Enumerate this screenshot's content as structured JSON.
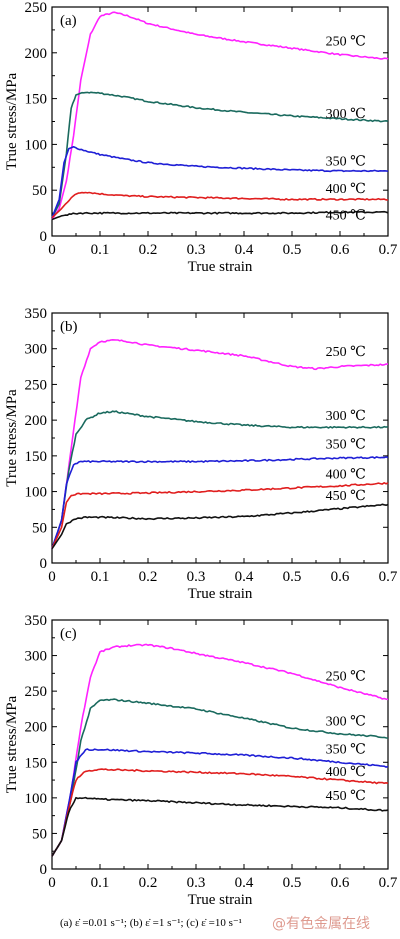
{
  "caption": "(a)  ε̇ =0.01 s⁻¹; (b)  ε̇ =1 s⁻¹; (c) ε̇ =10 s⁻¹",
  "watermark": "@有色金属在线",
  "colors": {
    "250": "#ff22ff",
    "300": "#1a6a5e",
    "350": "#1f1fd6",
    "400": "#e01e1e",
    "450": "#111111"
  },
  "chart_data": [
    {
      "type": "line",
      "panel_label": "(a)",
      "xlabel": "True strain",
      "ylabel": "True stress/MPa",
      "xlim": [
        0,
        0.7
      ],
      "ylim": [
        0,
        250
      ],
      "xticks": [
        "0",
        "0.1",
        "0.2",
        "0.3",
        "0.4",
        "0.5",
        "0.6",
        "0.7"
      ],
      "yticks": [
        "0",
        "50",
        "100",
        "150",
        "200",
        "250"
      ],
      "series": [
        {
          "name": "250 ℃",
          "temp": "250",
          "x": [
            0,
            0.015,
            0.03,
            0.045,
            0.06,
            0.08,
            0.1,
            0.13,
            0.16,
            0.2,
            0.3,
            0.4,
            0.5,
            0.6,
            0.7
          ],
          "y": [
            18,
            30,
            60,
            110,
            170,
            220,
            240,
            244,
            240,
            232,
            220,
            212,
            205,
            198,
            193
          ]
        },
        {
          "name": "300 ℃",
          "temp": "300",
          "x": [
            0,
            0.015,
            0.03,
            0.04,
            0.05,
            0.07,
            0.1,
            0.15,
            0.2,
            0.3,
            0.4,
            0.5,
            0.6,
            0.7
          ],
          "y": [
            20,
            35,
            90,
            140,
            154,
            157,
            156,
            152,
            147,
            140,
            135,
            131,
            128,
            125
          ]
        },
        {
          "name": "350 ℃",
          "temp": "350",
          "x": [
            0,
            0.015,
            0.025,
            0.035,
            0.045,
            0.07,
            0.1,
            0.15,
            0.2,
            0.3,
            0.4,
            0.5,
            0.6,
            0.7
          ],
          "y": [
            20,
            40,
            80,
            95,
            97,
            93,
            89,
            84,
            80,
            76,
            74,
            72,
            71,
            71
          ]
        },
        {
          "name": "400 ℃",
          "temp": "400",
          "x": [
            0,
            0.02,
            0.04,
            0.055,
            0.07,
            0.1,
            0.15,
            0.2,
            0.3,
            0.4,
            0.5,
            0.6,
            0.7
          ],
          "y": [
            20,
            30,
            42,
            47,
            48,
            46,
            44,
            43,
            42,
            41,
            40,
            40,
            40
          ]
        },
        {
          "name": "450 ℃",
          "temp": "450",
          "x": [
            0,
            0.02,
            0.04,
            0.06,
            0.1,
            0.2,
            0.3,
            0.4,
            0.5,
            0.6,
            0.7
          ],
          "y": [
            18,
            22,
            24,
            25,
            25,
            25,
            25,
            25,
            25,
            26,
            26
          ]
        }
      ]
    },
    {
      "type": "line",
      "panel_label": "(b)",
      "xlabel": "True strain",
      "ylabel": "True stress/MPa",
      "xlim": [
        0,
        0.7
      ],
      "ylim": [
        0,
        350
      ],
      "xticks": [
        "0",
        "0.1",
        "0.2",
        "0.3",
        "0.4",
        "0.5",
        "0.6",
        "0.7"
      ],
      "yticks": [
        "0",
        "50",
        "100",
        "150",
        "200",
        "250",
        "300",
        "350"
      ],
      "series": [
        {
          "name": "250 ℃",
          "temp": "250",
          "x": [
            0,
            0.02,
            0.04,
            0.06,
            0.08,
            0.1,
            0.13,
            0.16,
            0.2,
            0.3,
            0.4,
            0.5,
            0.55,
            0.6,
            0.7
          ],
          "y": [
            20,
            60,
            160,
            260,
            300,
            310,
            312,
            310,
            305,
            298,
            290,
            275,
            272,
            275,
            278
          ]
        },
        {
          "name": "300 ℃",
          "temp": "300",
          "x": [
            0,
            0.02,
            0.035,
            0.05,
            0.07,
            0.1,
            0.13,
            0.2,
            0.3,
            0.4,
            0.5,
            0.6,
            0.7
          ],
          "y": [
            20,
            60,
            130,
            180,
            200,
            210,
            212,
            205,
            198,
            193,
            190,
            190,
            190
          ]
        },
        {
          "name": "350 ℃",
          "temp": "350",
          "x": [
            0,
            0.02,
            0.03,
            0.045,
            0.06,
            0.1,
            0.2,
            0.3,
            0.4,
            0.5,
            0.6,
            0.7
          ],
          "y": [
            20,
            60,
            110,
            138,
            142,
            142,
            142,
            142,
            143,
            145,
            147,
            148
          ]
        },
        {
          "name": "400 ℃",
          "temp": "400",
          "x": [
            0,
            0.02,
            0.03,
            0.04,
            0.06,
            0.1,
            0.2,
            0.3,
            0.4,
            0.5,
            0.6,
            0.7
          ],
          "y": [
            20,
            50,
            85,
            95,
            97,
            97,
            98,
            100,
            102,
            105,
            108,
            112
          ]
        },
        {
          "name": "450 ℃",
          "temp": "450",
          "x": [
            0,
            0.02,
            0.03,
            0.05,
            0.07,
            0.1,
            0.2,
            0.3,
            0.4,
            0.5,
            0.6,
            0.7
          ],
          "y": [
            20,
            40,
            55,
            62,
            64,
            64,
            62,
            63,
            65,
            70,
            76,
            82
          ]
        }
      ]
    },
    {
      "type": "line",
      "panel_label": "(c)",
      "xlabel": "True strain",
      "ylabel": "True stress/MPa",
      "xlim": [
        0,
        0.7
      ],
      "ylim": [
        0,
        350
      ],
      "xticks": [
        "0",
        "0.1",
        "0.2",
        "0.3",
        "0.4",
        "0.5",
        "0.6",
        "0.7"
      ],
      "yticks": [
        "0",
        "50",
        "100",
        "150",
        "200",
        "250",
        "300",
        "350"
      ],
      "series": [
        {
          "name": "250 ℃",
          "temp": "250",
          "x": [
            0,
            0.02,
            0.04,
            0.06,
            0.08,
            0.1,
            0.13,
            0.16,
            0.2,
            0.25,
            0.3,
            0.4,
            0.5,
            0.6,
            0.7
          ],
          "y": [
            18,
            40,
            110,
            200,
            270,
            305,
            312,
            314,
            315,
            310,
            303,
            290,
            275,
            255,
            238
          ]
        },
        {
          "name": "300 ℃",
          "temp": "300",
          "x": [
            0,
            0.02,
            0.04,
            0.06,
            0.08,
            0.1,
            0.13,
            0.2,
            0.3,
            0.4,
            0.5,
            0.6,
            0.7
          ],
          "y": [
            18,
            40,
            100,
            180,
            225,
            237,
            238,
            233,
            225,
            212,
            198,
            190,
            185
          ]
        },
        {
          "name": "350 ℃",
          "temp": "350",
          "x": [
            0,
            0.02,
            0.04,
            0.05,
            0.07,
            0.1,
            0.2,
            0.3,
            0.4,
            0.5,
            0.6,
            0.7
          ],
          "y": [
            18,
            40,
            110,
            150,
            168,
            168,
            165,
            163,
            160,
            156,
            150,
            144
          ]
        },
        {
          "name": "400 ℃",
          "temp": "400",
          "x": [
            0,
            0.02,
            0.04,
            0.05,
            0.07,
            0.1,
            0.2,
            0.3,
            0.4,
            0.5,
            0.6,
            0.7
          ],
          "y": [
            18,
            40,
            100,
            125,
            138,
            140,
            138,
            136,
            134,
            130,
            125,
            120
          ]
        },
        {
          "name": "450 ℃",
          "temp": "450",
          "x": [
            0,
            0.02,
            0.035,
            0.05,
            0.07,
            0.1,
            0.2,
            0.3,
            0.4,
            0.5,
            0.6,
            0.7
          ],
          "y": [
            18,
            40,
            80,
            100,
            100,
            98,
            96,
            93,
            90,
            88,
            86,
            82
          ]
        }
      ]
    }
  ]
}
